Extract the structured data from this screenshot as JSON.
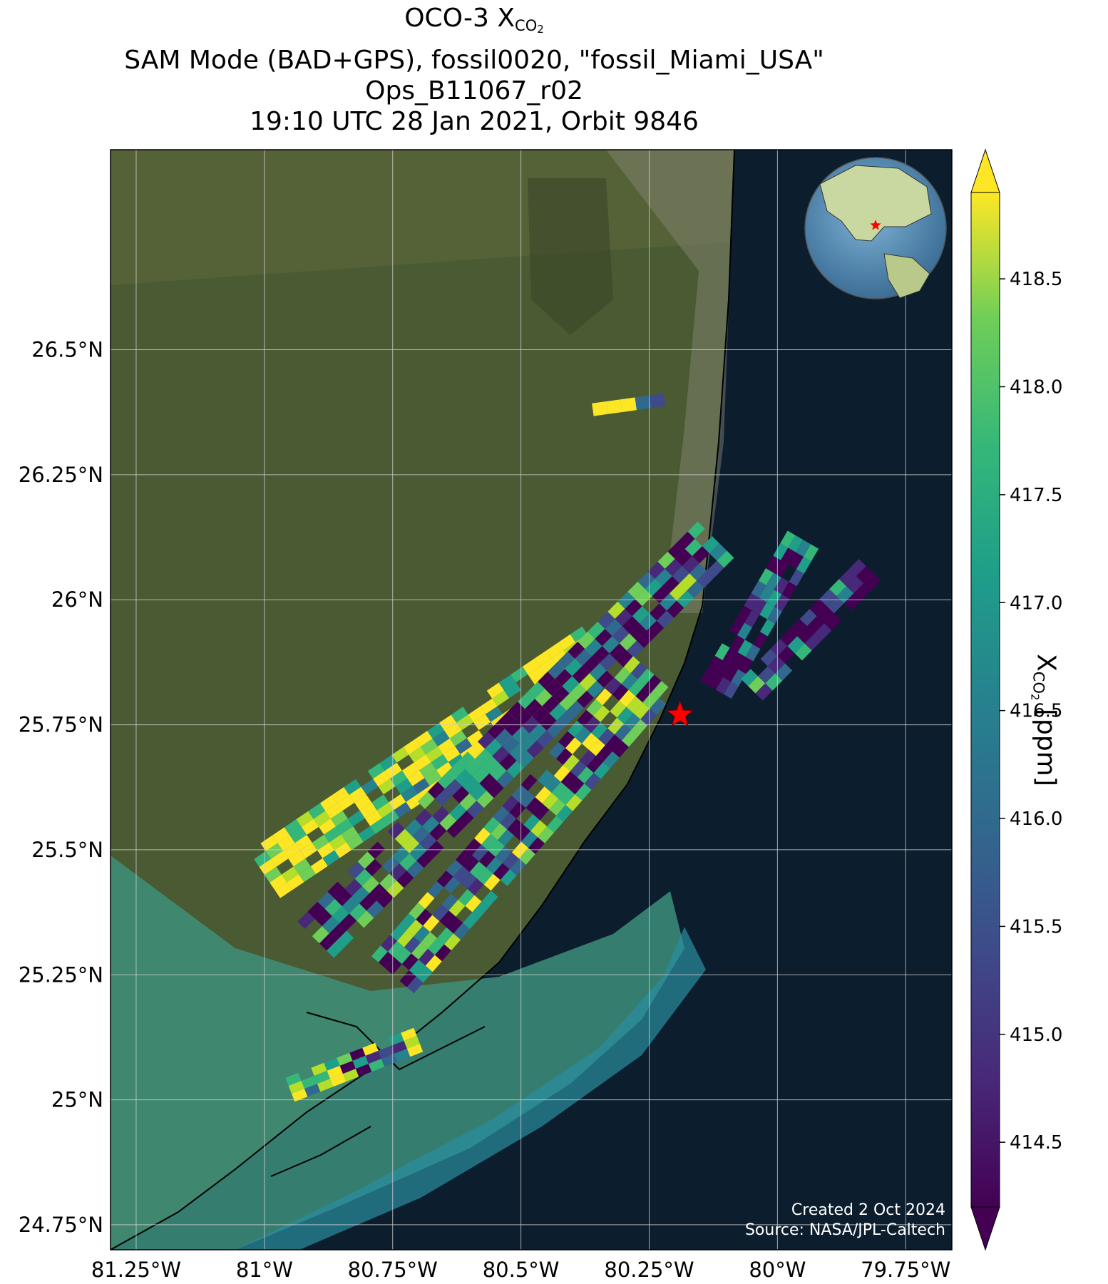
{
  "title": {
    "line1_prefix": "OCO-3 X",
    "line1_sub": "CO",
    "line1_subsub": "2",
    "line2": "SAM Mode (BAD+GPS), fossil0020, \"fossil_Miami_USA\"",
    "line3": "Ops_B11067_r02",
    "line4": "19:10 UTC 28 Jan 2021, Orbit 9846"
  },
  "map": {
    "lon_range": [
      -81.3,
      -79.66
    ],
    "lat_range": [
      24.7,
      26.9
    ],
    "lon_ticks": [
      {
        "value": -81.25,
        "label": "81.25°W"
      },
      {
        "value": -81.0,
        "label": "81°W"
      },
      {
        "value": -80.75,
        "label": "80.75°W"
      },
      {
        "value": -80.5,
        "label": "80.5°W"
      },
      {
        "value": -80.25,
        "label": "80.25°W"
      },
      {
        "value": -80.0,
        "label": "80°W"
      },
      {
        "value": -79.75,
        "label": "79.75°W"
      }
    ],
    "lat_ticks": [
      {
        "value": 26.5,
        "label": "26.5°N"
      },
      {
        "value": 26.25,
        "label": "26.25°N"
      },
      {
        "value": 26.0,
        "label": "26°N"
      },
      {
        "value": 25.75,
        "label": "25.75°N"
      },
      {
        "value": 25.5,
        "label": "25.5°N"
      },
      {
        "value": 25.25,
        "label": "25.25°N"
      },
      {
        "value": 25.0,
        "label": "25°N"
      },
      {
        "value": 24.75,
        "label": "24.75°N"
      }
    ],
    "target": {
      "lon": -80.19,
      "lat": 25.77,
      "color": "#ff0000"
    },
    "swaths": [
      {
        "lon1": -81.0,
        "lat1": 25.45,
        "lon2": -80.35,
        "lat2": 25.9,
        "width": 0.11,
        "bias": 0.9
      },
      {
        "lon1": -80.9,
        "lat1": 25.32,
        "lon2": -80.12,
        "lat2": 26.12,
        "width": 0.1,
        "bias": 0.3
      },
      {
        "lon1": -80.75,
        "lat1": 25.25,
        "lon2": -80.24,
        "lat2": 25.85,
        "width": 0.11,
        "bias": 0.45
      },
      {
        "lon1": -80.12,
        "lat1": 25.82,
        "lon2": -79.95,
        "lat2": 26.12,
        "width": 0.07,
        "bias": 0.15
      },
      {
        "lon1": -80.05,
        "lat1": 25.82,
        "lon2": -79.82,
        "lat2": 26.06,
        "width": 0.06,
        "bias": 0.2
      },
      {
        "lon1": -80.36,
        "lat1": 26.38,
        "lon2": -80.22,
        "lat2": 26.4,
        "width": 0.025,
        "bias": 0.6
      },
      {
        "lon1": -80.95,
        "lat1": 25.02,
        "lon2": -80.7,
        "lat2": 25.12,
        "width": 0.05,
        "bias": 0.5
      }
    ]
  },
  "colorbar": {
    "range": [
      414.2,
      418.9
    ],
    "ticks": [
      414.5,
      415.0,
      415.5,
      416.0,
      416.5,
      417.0,
      417.5,
      418.0,
      418.5
    ],
    "tick_labels": [
      "414.5",
      "415.0",
      "415.5",
      "416.0",
      "416.5",
      "417.0",
      "417.5",
      "418.0",
      "418.5"
    ],
    "colormap": "viridis",
    "label_prefix": "X",
    "label_sub": "CO",
    "label_subsub": "2",
    "label_suffix": " [ppm]"
  },
  "credits": {
    "created": "Created 2 Oct 2024",
    "source": "Source: NASA/JPL-Caltech"
  },
  "colors": {
    "ocean": "#0c1d2e",
    "land": "#4a5a32",
    "shallow_water": "#3d8f7a",
    "gridline": "#d0d0d0"
  }
}
